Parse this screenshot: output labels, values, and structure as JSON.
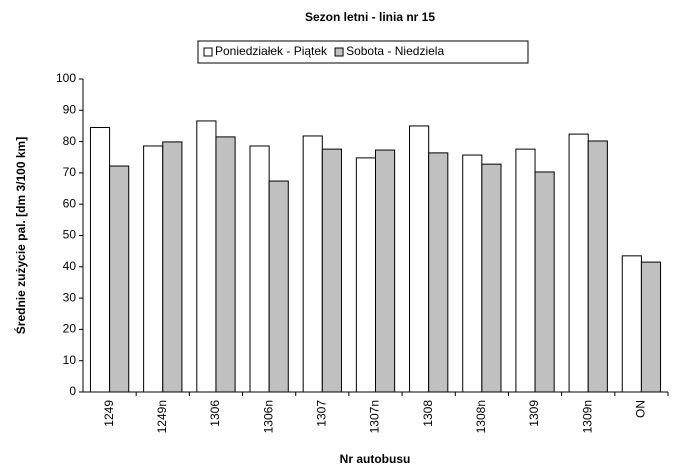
{
  "chart_data": {
    "type": "bar",
    "title": "Sezon letni - linia nr 15",
    "x_label": "Nr autobusu",
    "y_label": "Średnie zużycie pal. [dm 3/100 km]",
    "categories": [
      "1249",
      "1249n",
      "1306",
      "1306n",
      "1307",
      "1307n",
      "1308",
      "1308n",
      "1309",
      "1309n",
      "ON"
    ],
    "series": [
      {
        "name": "Poniedziałek - Piątek",
        "color": "#ffffff",
        "values": [
          84.5,
          78.6,
          86.6,
          78.6,
          81.8,
          74.8,
          85,
          75.7,
          77.6,
          82.4,
          43.5
        ]
      },
      {
        "name": "Sobota - Niedziela",
        "color": "#c0c0c0",
        "values": [
          72.2,
          79.9,
          81.5,
          67.4,
          77.6,
          77.3,
          76.4,
          72.8,
          70.3,
          80.2,
          41.5
        ]
      }
    ],
    "ylim": [
      0,
      100
    ],
    "yticks": [
      0,
      10,
      20,
      30,
      40,
      50,
      60,
      70,
      80,
      90,
      100
    ],
    "legend": "top"
  }
}
